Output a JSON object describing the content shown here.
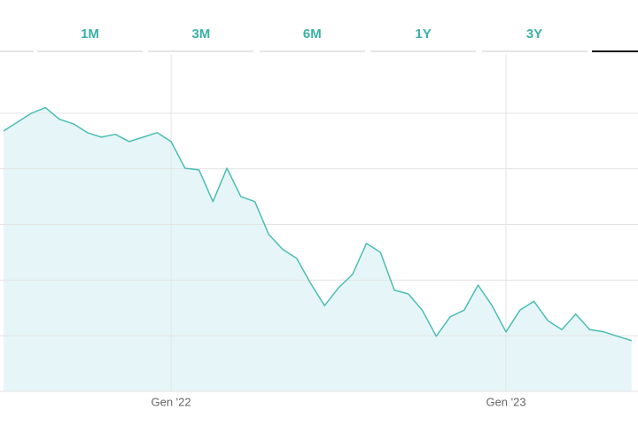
{
  "tabs": [
    "1M",
    "3M",
    "6M",
    "1Y",
    "3Y"
  ],
  "chart_data": {
    "type": "area",
    "x": [
      -6,
      -5.5,
      -5,
      -4.5,
      -4,
      -3.5,
      -3,
      -2.5,
      -2,
      -1.5,
      -1,
      -0.5,
      0,
      0.5,
      1,
      1.5,
      2,
      2.5,
      3,
      3.5,
      4,
      4.5,
      5,
      5.5,
      6,
      6.5,
      7,
      7.5,
      8,
      8.5,
      9,
      9.5,
      10,
      10.5,
      11,
      11.5,
      12,
      12.5,
      13,
      13.5,
      14,
      14.5,
      15,
      15.5,
      16,
      16.5
    ],
    "values": [
      4.68,
      4.84,
      5.0,
      5.1,
      4.89,
      4.81,
      4.65,
      4.57,
      4.62,
      4.49,
      4.57,
      4.65,
      4.49,
      4.01,
      3.98,
      3.41,
      4.01,
      3.5,
      3.41,
      2.82,
      2.55,
      2.39,
      1.94,
      1.54,
      1.86,
      2.1,
      2.66,
      2.5,
      1.82,
      1.75,
      1.46,
      0.99,
      1.34,
      1.46,
      1.91,
      1.54,
      1.07,
      1.46,
      1.62,
      1.27,
      1.11,
      1.39,
      1.11,
      1.07,
      0.99,
      0.91
    ],
    "color": "#4cbdb3",
    "fill_color": "#e6f6f8",
    "xlim": [
      -6.13,
      16.73
    ],
    "xticks": [
      {
        "value": 0,
        "label": "Gen '22"
      },
      {
        "value": 12,
        "label": "Gen '23"
      }
    ],
    "ylim": [
      0,
      6
    ],
    "yticks": [
      0,
      1,
      2,
      3,
      4,
      5
    ],
    "grid": true
  }
}
